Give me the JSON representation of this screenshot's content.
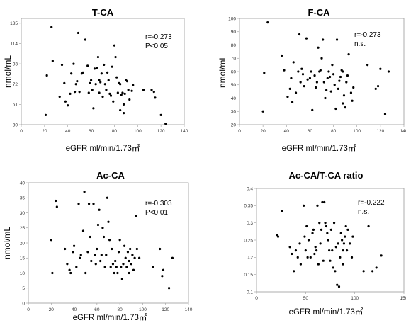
{
  "chart_data": [
    {
      "type": "scatter",
      "title": "T-CA",
      "xlabel": "eGFR ml/min/1.73㎡",
      "ylabel": "nmol/mL",
      "xlim": [
        0,
        140
      ],
      "ylim": [
        30,
        140
      ],
      "xticks": [
        "0",
        "20",
        "40",
        "60",
        "80",
        "100",
        "120",
        "140"
      ],
      "yticks": [
        "30",
        "51",
        "72",
        "93",
        "114",
        "135"
      ],
      "annotations": [
        "r=-0.273",
        "P<0.05"
      ],
      "grid": false,
      "points": [
        [
          21,
          40
        ],
        [
          22,
          81
        ],
        [
          26,
          131
        ],
        [
          27,
          96
        ],
        [
          33,
          59
        ],
        [
          35,
          92
        ],
        [
          37,
          73
        ],
        [
          38,
          54
        ],
        [
          40,
          50
        ],
        [
          42,
          62
        ],
        [
          43,
          83
        ],
        [
          45,
          93
        ],
        [
          46,
          64
        ],
        [
          47,
          72
        ],
        [
          48,
          75
        ],
        [
          49,
          125
        ],
        [
          50,
          64
        ],
        [
          52,
          83
        ],
        [
          53,
          84
        ],
        [
          55,
          118
        ],
        [
          57,
          91
        ],
        [
          58,
          63
        ],
        [
          59,
          73
        ],
        [
          60,
          76
        ],
        [
          61,
          66
        ],
        [
          62,
          47
        ],
        [
          63,
          88
        ],
        [
          64,
          72
        ],
        [
          65,
          89
        ],
        [
          66,
          100
        ],
        [
          67,
          63
        ],
        [
          67,
          76
        ],
        [
          68,
          74
        ],
        [
          69,
          83
        ],
        [
          70,
          59
        ],
        [
          71,
          92
        ],
        [
          72,
          72
        ],
        [
          73,
          66
        ],
        [
          74,
          84
        ],
        [
          75,
          76
        ],
        [
          76,
          62
        ],
        [
          77,
          60
        ],
        [
          78,
          90
        ],
        [
          79,
          54
        ],
        [
          80,
          112
        ],
        [
          81,
          100
        ],
        [
          82,
          79
        ],
        [
          83,
          63
        ],
        [
          84,
          73
        ],
        [
          85,
          72
        ],
        [
          85,
          45
        ],
        [
          86,
          61
        ],
        [
          87,
          63
        ],
        [
          88,
          51
        ],
        [
          88,
          42
        ],
        [
          89,
          62
        ],
        [
          90,
          76
        ],
        [
          91,
          75
        ],
        [
          92,
          66
        ],
        [
          93,
          56
        ],
        [
          95,
          65
        ],
        [
          96,
          71
        ],
        [
          105,
          66
        ],
        [
          112,
          66
        ],
        [
          114,
          64
        ],
        [
          115,
          58
        ],
        [
          120,
          40
        ],
        [
          124,
          31
        ]
      ]
    },
    {
      "type": "scatter",
      "title": "F-CA",
      "xlabel": "eGFR ml/min/1.73㎡",
      "ylabel": "nmol/mL",
      "xlim": [
        0,
        140
      ],
      "ylim": [
        20,
        100
      ],
      "xticks": [
        "0",
        "20",
        "40",
        "60",
        "80",
        "100",
        "120",
        "140"
      ],
      "yticks": [
        "20",
        "30",
        "40",
        "50",
        "60",
        "70",
        "80",
        "90",
        "100"
      ],
      "annotations": [
        "r=-0.273",
        "n.s."
      ],
      "grid": false,
      "points": [
        [
          20,
          30
        ],
        [
          21,
          59
        ],
        [
          24,
          97
        ],
        [
          36,
          72
        ],
        [
          38,
          61
        ],
        [
          41,
          41
        ],
        [
          43,
          47
        ],
        [
          44,
          55
        ],
        [
          45,
          37
        ],
        [
          46,
          67
        ],
        [
          48,
          44
        ],
        [
          50,
          60
        ],
        [
          51,
          88
        ],
        [
          52,
          52
        ],
        [
          53,
          62
        ],
        [
          54,
          58
        ],
        [
          55,
          49
        ],
        [
          57,
          85
        ],
        [
          58,
          54
        ],
        [
          60,
          55
        ],
        [
          61,
          60
        ],
        [
          62,
          31
        ],
        [
          64,
          57
        ],
        [
          65,
          48
        ],
        [
          66,
          52
        ],
        [
          67,
          78
        ],
        [
          68,
          60
        ],
        [
          69,
          61
        ],
        [
          70,
          70
        ],
        [
          71,
          84
        ],
        [
          72,
          52
        ],
        [
          73,
          40
        ],
        [
          74,
          46
        ],
        [
          75,
          55
        ],
        [
          76,
          60
        ],
        [
          77,
          56
        ],
        [
          78,
          45
        ],
        [
          79,
          65
        ],
        [
          80,
          58
        ],
        [
          81,
          50
        ],
        [
          82,
          32
        ],
        [
          83,
          84
        ],
        [
          84,
          47
        ],
        [
          85,
          53
        ],
        [
          86,
          56
        ],
        [
          87,
          61
        ],
        [
          88,
          36
        ],
        [
          88,
          60
        ],
        [
          89,
          42
        ],
        [
          90,
          33
        ],
        [
          91,
          52
        ],
        [
          92,
          57
        ],
        [
          93,
          73
        ],
        [
          95,
          44
        ],
        [
          96,
          38
        ],
        [
          97,
          48
        ],
        [
          109,
          65
        ],
        [
          116,
          47
        ],
        [
          118,
          49
        ],
        [
          120,
          62
        ],
        [
          124,
          28
        ],
        [
          127,
          60
        ]
      ]
    },
    {
      "type": "scatter",
      "title": "Ac-CA",
      "xlabel": "eGFR ml/min/1.73㎡",
      "ylabel": "nmol/mL",
      "xlim": [
        0,
        140
      ],
      "ylim": [
        0,
        40
      ],
      "xticks": [
        "0",
        "20",
        "40",
        "60",
        "80",
        "100",
        "120",
        "140"
      ],
      "yticks": [
        "0",
        "5",
        "10",
        "15",
        "20",
        "25",
        "30",
        "35",
        "40"
      ],
      "annotations": [
        "r=-0.303",
        "P<0.01"
      ],
      "grid": false,
      "points": [
        [
          20,
          21
        ],
        [
          21,
          10
        ],
        [
          24,
          34
        ],
        [
          25,
          32
        ],
        [
          32,
          18
        ],
        [
          34,
          13
        ],
        [
          36,
          11
        ],
        [
          37,
          10
        ],
        [
          39,
          17
        ],
        [
          40,
          19
        ],
        [
          42,
          12
        ],
        [
          44,
          33
        ],
        [
          45,
          15
        ],
        [
          46,
          16
        ],
        [
          48,
          24
        ],
        [
          49,
          37
        ],
        [
          50,
          10
        ],
        [
          52,
          17
        ],
        [
          53,
          33
        ],
        [
          54,
          22
        ],
        [
          55,
          14
        ],
        [
          57,
          33
        ],
        [
          58,
          16
        ],
        [
          59,
          13
        ],
        [
          60,
          18
        ],
        [
          61,
          26
        ],
        [
          62,
          31
        ],
        [
          63,
          14
        ],
        [
          64,
          16
        ],
        [
          65,
          25
        ],
        [
          66,
          22
        ],
        [
          67,
          12
        ],
        [
          68,
          16
        ],
        [
          69,
          35
        ],
        [
          70,
          27
        ],
        [
          71,
          21
        ],
        [
          72,
          12
        ],
        [
          73,
          18
        ],
        [
          74,
          13
        ],
        [
          75,
          10
        ],
        [
          76,
          14
        ],
        [
          77,
          12
        ],
        [
          78,
          10
        ],
        [
          79,
          17
        ],
        [
          80,
          21
        ],
        [
          81,
          12
        ],
        [
          82,
          8
        ],
        [
          83,
          13
        ],
        [
          84,
          19
        ],
        [
          85,
          15
        ],
        [
          86,
          12
        ],
        [
          87,
          17
        ],
        [
          88,
          14
        ],
        [
          88,
          10
        ],
        [
          89,
          18
        ],
        [
          90,
          13
        ],
        [
          91,
          16
        ],
        [
          92,
          11
        ],
        [
          93,
          15
        ],
        [
          94,
          29
        ],
        [
          95,
          18
        ],
        [
          97,
          15
        ],
        [
          109,
          12
        ],
        [
          115,
          18
        ],
        [
          117,
          9
        ],
        [
          118,
          11
        ],
        [
          123,
          5
        ],
        [
          126,
          15
        ]
      ]
    },
    {
      "type": "scatter",
      "title": "Ac-CA/T-CA ratio",
      "xlabel": "eGFR ml/min/1.73㎡",
      "ylabel": "",
      "xlim": [
        0,
        150
      ],
      "ylim": [
        0.1,
        0.4
      ],
      "xticks": [
        "0",
        "50",
        "100",
        "150"
      ],
      "yticks": [
        "0.1",
        "0.15",
        "0.2",
        "0.25",
        "0.3",
        "0.35",
        "0.4"
      ],
      "annotations": [
        "r=-0.222",
        "n.s."
      ],
      "grid": false,
      "points": [
        [
          21,
          0.265
        ],
        [
          22,
          0.26
        ],
        [
          26,
          0.335
        ],
        [
          34,
          0.23
        ],
        [
          36,
          0.21
        ],
        [
          38,
          0.16
        ],
        [
          40,
          0.22
        ],
        [
          42,
          0.2
        ],
        [
          44,
          0.24
        ],
        [
          45,
          0.18
        ],
        [
          48,
          0.35
        ],
        [
          49,
          0.26
        ],
        [
          50,
          0.22
        ],
        [
          51,
          0.29
        ],
        [
          52,
          0.2
        ],
        [
          53,
          0.25
        ],
        [
          55,
          0.2
        ],
        [
          57,
          0.27
        ],
        [
          58,
          0.28
        ],
        [
          59,
          0.21
        ],
        [
          60,
          0.23
        ],
        [
          61,
          0.22
        ],
        [
          62,
          0.35
        ],
        [
          63,
          0.18
        ],
        [
          64,
          0.3
        ],
        [
          65,
          0.24
        ],
        [
          66,
          0.28
        ],
        [
          67,
          0.36
        ],
        [
          68,
          0.19
        ],
        [
          69,
          0.36
        ],
        [
          70,
          0.3
        ],
        [
          71,
          0.29
        ],
        [
          72,
          0.27
        ],
        [
          73,
          0.25
        ],
        [
          74,
          0.22
        ],
        [
          75,
          0.19
        ],
        [
          76,
          0.28
        ],
        [
          77,
          0.22
        ],
        [
          78,
          0.17
        ],
        [
          79,
          0.3
        ],
        [
          80,
          0.16
        ],
        [
          81,
          0.23
        ],
        [
          82,
          0.12
        ],
        [
          83,
          0.24
        ],
        [
          84,
          0.115
        ],
        [
          85,
          0.2
        ],
        [
          86,
          0.27
        ],
        [
          87,
          0.25
        ],
        [
          88,
          0.22
        ],
        [
          88,
          0.18
        ],
        [
          89,
          0.24
        ],
        [
          90,
          0.26
        ],
        [
          91,
          0.29
        ],
        [
          92,
          0.22
        ],
        [
          93,
          0.28
        ],
        [
          95,
          0.24
        ],
        [
          97,
          0.2
        ],
        [
          98,
          0.26
        ],
        [
          109,
          0.16
        ],
        [
          114,
          0.29
        ],
        [
          118,
          0.16
        ],
        [
          122,
          0.17
        ],
        [
          127,
          0.205
        ]
      ]
    }
  ]
}
